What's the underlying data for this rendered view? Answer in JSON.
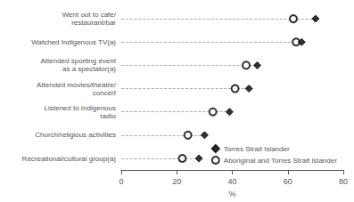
{
  "chart_data": {
    "type": "scatter",
    "orientation": "horizontal",
    "categories": [
      "Went out to cafe/\nrestaurant/bar",
      "Watched Indigenous TV(a)",
      "Attended sporting event\nas a spectator(a)",
      "Attended movies/theatre/\nconcert",
      "Listened to Indigenous\nradio",
      "Church/religious activities",
      "Recreational/cultural group(a)"
    ],
    "series": [
      {
        "name": "Torres Strait Islander",
        "color": "black",
        "marker": "diamond",
        "values": [
          70,
          65,
          49,
          46,
          39,
          30,
          28
        ]
      },
      {
        "name": "Aboriginal and Torres Strait Islander",
        "color": "black",
        "marker": "emptyCircle",
        "values": [
          62,
          63,
          45,
          41,
          33,
          24,
          22
        ]
      }
    ],
    "xlabel": "%",
    "xlim": [
      0,
      80
    ],
    "xticks": [
      0,
      20,
      40,
      60,
      80
    ],
    "line_style": "dashed",
    "grid": false,
    "legend": "lower right"
  }
}
